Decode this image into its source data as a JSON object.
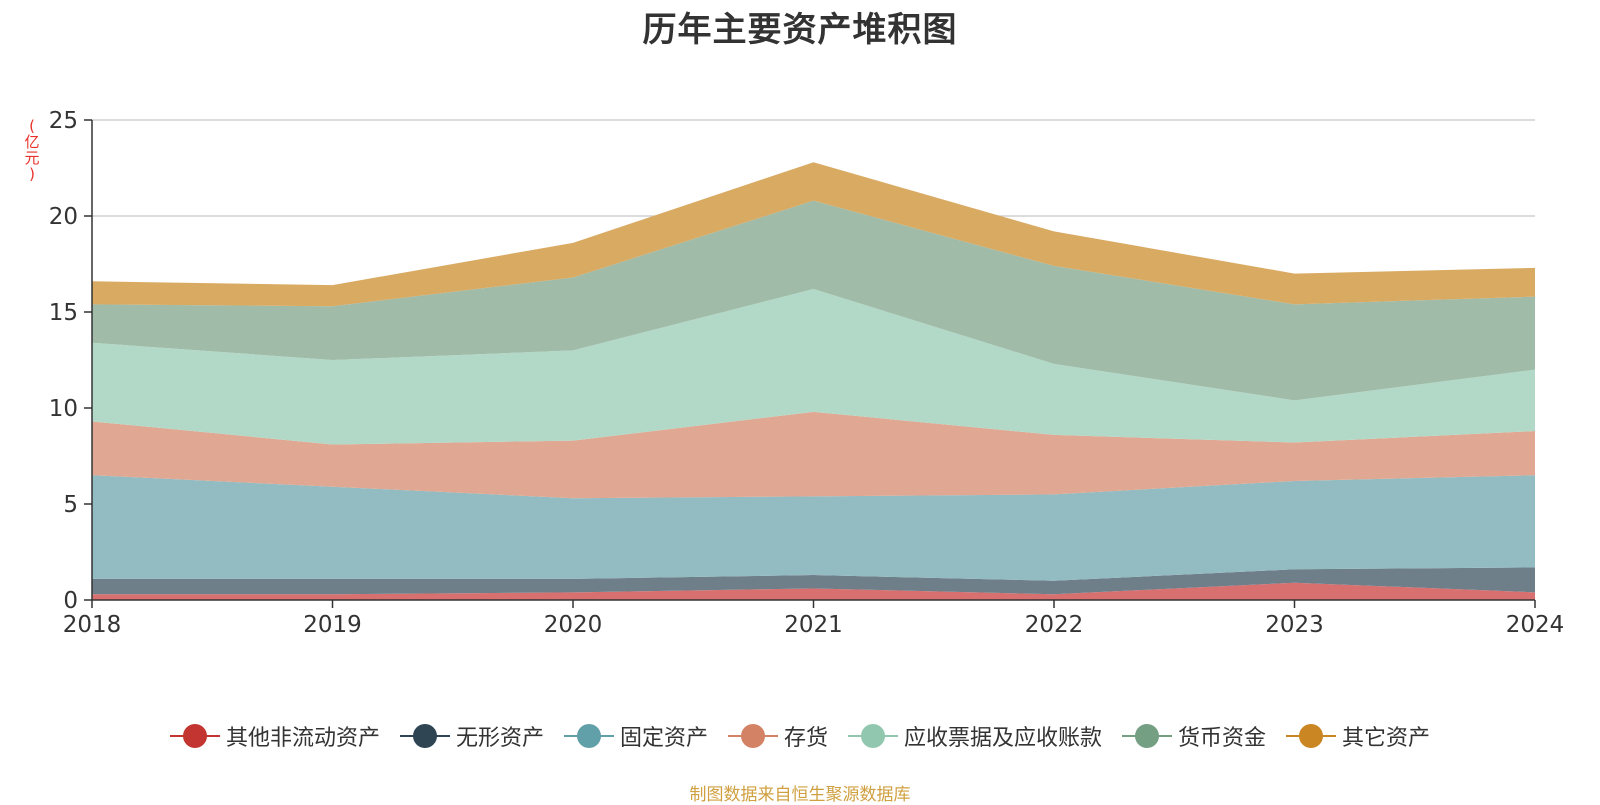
{
  "chart_data": {
    "type": "area",
    "stacked": true,
    "title": "历年主要资产堆积图",
    "unit_label": "(亿元)",
    "x": [
      "2018",
      "2019",
      "2020",
      "2021",
      "2022",
      "2023",
      "2024"
    ],
    "ylim": [
      0,
      25
    ],
    "yticks": [
      "0",
      "5",
      "10",
      "15",
      "20",
      "25"
    ],
    "grid": true,
    "legend_position": "bottom",
    "series": [
      {
        "name": "其他非流动资产",
        "color": "#c23531",
        "area_color": "#d97070",
        "values": [
          0.3,
          0.3,
          0.4,
          0.6,
          0.3,
          0.9,
          0.4
        ]
      },
      {
        "name": "无形资产",
        "color": "#2f4554",
        "area_color": "#6f7f8a",
        "values": [
          0.8,
          0.8,
          0.7,
          0.7,
          0.7,
          0.7,
          1.3
        ]
      },
      {
        "name": "固定资产",
        "color": "#61a0a8",
        "area_color": "#92bbc2",
        "values": [
          5.4,
          4.8,
          4.2,
          4.1,
          4.5,
          4.6,
          4.8
        ]
      },
      {
        "name": "存货",
        "color": "#d48265",
        "area_color": "#e0a892",
        "values": [
          2.8,
          2.2,
          3.0,
          4.4,
          3.1,
          2.0,
          2.3
        ]
      },
      {
        "name": "应收票据及应收账款",
        "color": "#91c7ae",
        "area_color": "#b2d9c7",
        "values": [
          4.1,
          4.4,
          4.7,
          6.4,
          3.7,
          2.2,
          3.2
        ]
      },
      {
        "name": "货币资金",
        "color": "#749f83",
        "area_color": "#a0bba8",
        "values": [
          2.0,
          2.8,
          3.8,
          4.6,
          5.1,
          5.0,
          3.8
        ]
      },
      {
        "name": "其它资产",
        "color": "#ca8622",
        "area_color": "#d9aa62",
        "values": [
          1.2,
          1.1,
          1.8,
          2.0,
          1.8,
          1.6,
          1.5
        ]
      }
    ]
  },
  "source_note": "制图数据来自恒生聚源数据库"
}
